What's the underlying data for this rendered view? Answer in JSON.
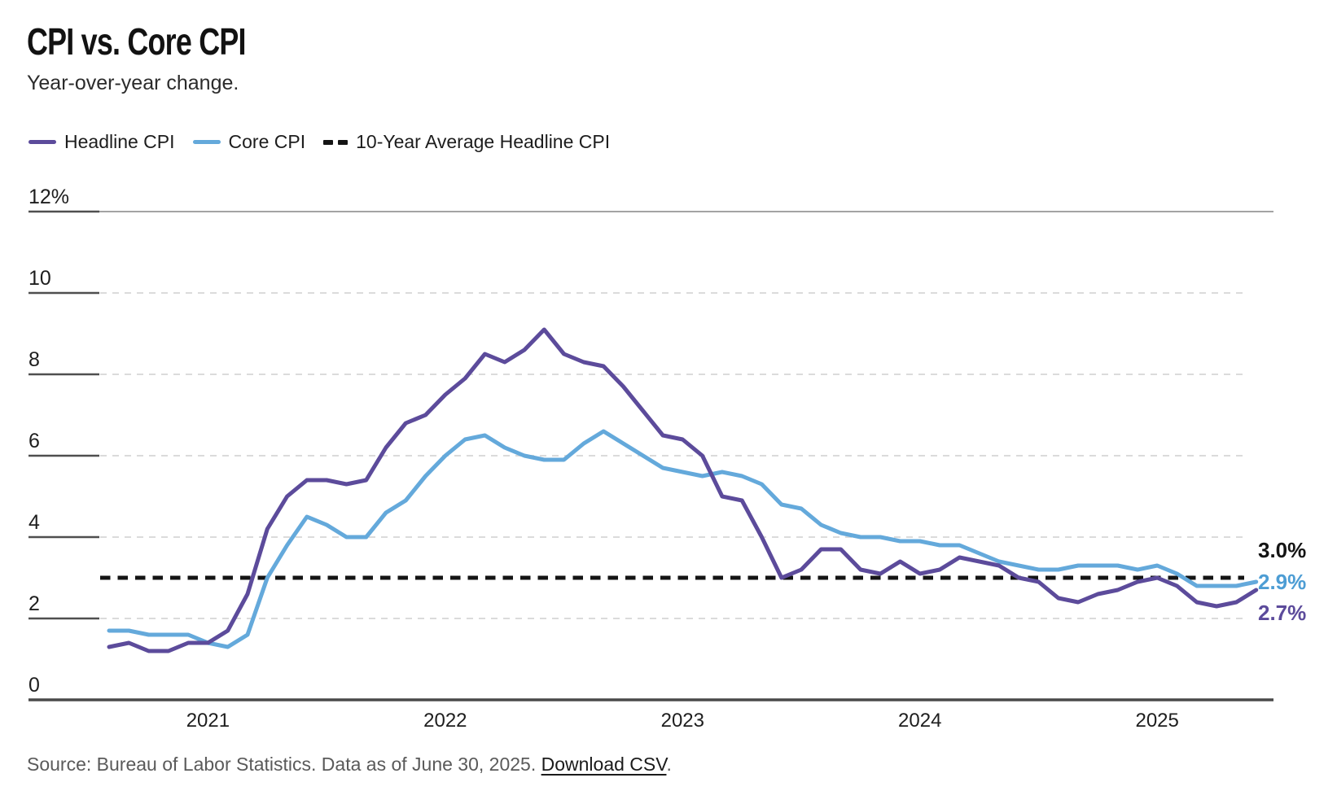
{
  "header": {
    "title": "CPI vs. Core CPI",
    "subtitle": "Year-over-year change."
  },
  "legend": {
    "items": [
      {
        "label": "Headline CPI",
        "color": "#5C4B9B",
        "swatch": "line"
      },
      {
        "label": "Core CPI",
        "color": "#64A9DB",
        "swatch": "line"
      },
      {
        "label": "10-Year Average Headline CPI",
        "color": "#141414",
        "swatch": "dashes"
      }
    ]
  },
  "chart_data": {
    "type": "line",
    "title": "CPI vs. Core CPI",
    "subtitle": "Year-over-year change.",
    "frequency": "monthly",
    "x_start_month": "2020-08",
    "x_end_month": "2025-06",
    "x_tick_labels": [
      "2021",
      "2022",
      "2023",
      "2024",
      "2025"
    ],
    "y_axis": {
      "min": 0,
      "max": 12,
      "tick_values": [
        0,
        2,
        4,
        6,
        8,
        10,
        12
      ],
      "tick_labels": [
        "0",
        "2",
        "4",
        "6",
        "8",
        "10",
        "12%"
      ]
    },
    "grid": "dashed-horizontal",
    "legend_position": "top-left",
    "series": [
      {
        "name": "Headline CPI",
        "color": "#5C4B9B",
        "values": [
          1.3,
          1.4,
          1.2,
          1.2,
          1.4,
          1.4,
          1.7,
          2.6,
          4.2,
          5.0,
          5.4,
          5.4,
          5.3,
          5.4,
          6.2,
          6.8,
          7.0,
          7.5,
          7.9,
          8.5,
          8.3,
          8.6,
          9.1,
          8.5,
          8.3,
          8.2,
          7.7,
          7.1,
          6.5,
          6.4,
          6.0,
          5.0,
          4.9,
          4.0,
          3.0,
          3.2,
          3.7,
          3.7,
          3.2,
          3.1,
          3.4,
          3.1,
          3.2,
          3.5,
          3.4,
          3.3,
          3.0,
          2.9,
          2.5,
          2.4,
          2.6,
          2.7,
          2.9,
          3.0,
          2.8,
          2.4,
          2.3,
          2.4,
          2.7
        ]
      },
      {
        "name": "Core CPI",
        "color": "#64A9DB",
        "values": [
          1.7,
          1.7,
          1.6,
          1.6,
          1.6,
          1.4,
          1.3,
          1.6,
          3.0,
          3.8,
          4.5,
          4.3,
          4.0,
          4.0,
          4.6,
          4.9,
          5.5,
          6.0,
          6.4,
          6.5,
          6.2,
          6.0,
          5.9,
          5.9,
          6.3,
          6.6,
          6.3,
          6.0,
          5.7,
          5.6,
          5.5,
          5.6,
          5.5,
          5.3,
          4.8,
          4.7,
          4.3,
          4.1,
          4.0,
          4.0,
          3.9,
          3.9,
          3.8,
          3.8,
          3.6,
          3.4,
          3.3,
          3.2,
          3.2,
          3.3,
          3.3,
          3.3,
          3.2,
          3.3,
          3.1,
          2.8,
          2.8,
          2.8,
          2.9
        ]
      }
    ],
    "reference_line": {
      "label": "10-Year Average Headline CPI",
      "value": 3.0,
      "style": "dashed",
      "color": "#141414"
    },
    "end_labels": [
      {
        "text": "3.0%",
        "color": "#141414",
        "series": "10-Year Average Headline CPI"
      },
      {
        "text": "2.9%",
        "color": "#4D9DD4",
        "series": "Core CPI"
      },
      {
        "text": "2.7%",
        "color": "#5C4B9B",
        "series": "Headline CPI"
      }
    ]
  },
  "footer": {
    "source_prefix": "Source: Bureau of Labor Statistics. Data as of June 30, 2025. ",
    "link_text": "Download CSV",
    "suffix": "."
  }
}
